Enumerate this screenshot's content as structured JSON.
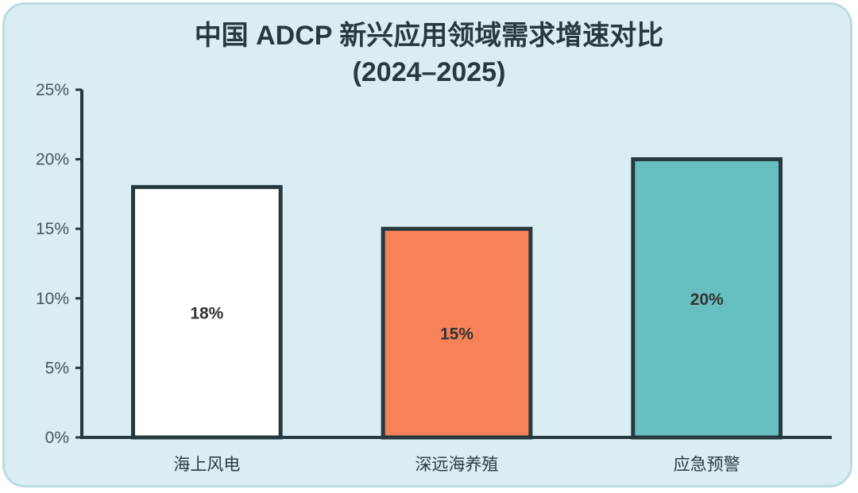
{
  "chart_data": {
    "type": "bar",
    "title_lines": [
      "中国 ADCP 新兴应用领域需求增速对比",
      "(2024–2025)"
    ],
    "categories": [
      "海上风电",
      "深远海养殖",
      "应急预警"
    ],
    "values": [
      18,
      15,
      20
    ],
    "value_labels": [
      "18%",
      "15%",
      "20%"
    ],
    "bar_colors": [
      "#ffffff",
      "#f7825a",
      "#67c0bf"
    ],
    "ylim": [
      0,
      25
    ],
    "yticks": [
      0,
      5,
      10,
      15,
      20,
      25
    ],
    "ytick_labels": [
      "0%",
      "5%",
      "10%",
      "15%",
      "20%",
      "25%"
    ],
    "grid": false,
    "legend": "none",
    "axis_color": "#26393f",
    "background_color": "#d9edf3"
  }
}
